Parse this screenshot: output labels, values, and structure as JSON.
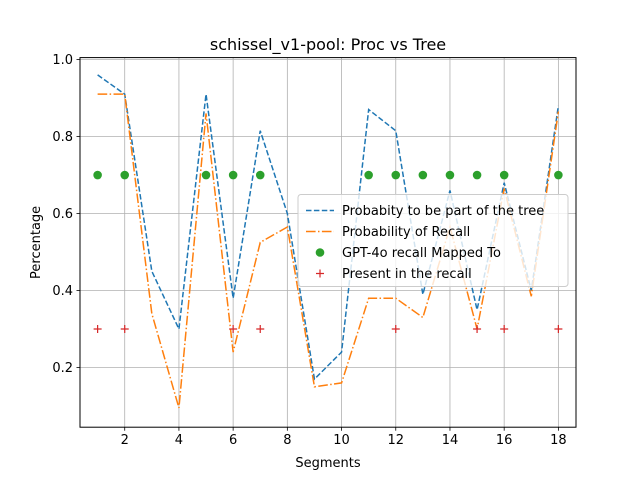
{
  "chart_data": {
    "type": "line",
    "title": "schissel_v1-pool: Proc vs Tree",
    "xlabel": "Segments",
    "ylabel": "Percentage",
    "xlim": [
      0.35,
      18.65
    ],
    "ylim": [
      0.045,
      1.005
    ],
    "xticks": [
      2,
      4,
      6,
      8,
      10,
      12,
      14,
      16,
      18
    ],
    "yticks": [
      0.2,
      0.4,
      0.6,
      0.8,
      1.0
    ],
    "grid": true,
    "legend_position": "center-right",
    "x": [
      1,
      2,
      3,
      4,
      5,
      6,
      7,
      8,
      9,
      10,
      11,
      12,
      13,
      14,
      15,
      16,
      17,
      18
    ],
    "series": [
      {
        "name": "Probabity to be part of the tree",
        "style": "dashed",
        "color": "#1f77b4",
        "values": [
          0.96,
          0.91,
          0.45,
          0.3,
          0.91,
          0.38,
          0.815,
          0.6,
          0.17,
          0.24,
          0.87,
          0.815,
          0.39,
          0.66,
          0.35,
          0.68,
          0.4,
          0.88
        ]
      },
      {
        "name": "Probability of Recall",
        "style": "dashdot",
        "color": "#ff7f0e",
        "values": [
          0.91,
          0.91,
          0.34,
          0.095,
          0.86,
          0.24,
          0.525,
          0.565,
          0.15,
          0.16,
          0.38,
          0.38,
          0.33,
          0.565,
          0.3,
          0.665,
          0.385,
          0.865
        ]
      },
      {
        "name": "GPT-4o recall Mapped To",
        "style": "marker-circle",
        "color": "#2ca02c",
        "x": [
          1,
          2,
          5,
          6,
          7,
          11,
          12,
          13,
          14,
          15,
          16,
          18
        ],
        "values": [
          0.7,
          0.7,
          0.7,
          0.7,
          0.7,
          0.7,
          0.7,
          0.7,
          0.7,
          0.7,
          0.7,
          0.7
        ]
      },
      {
        "name": "Present in the recall",
        "style": "marker-plus",
        "color": "#d62728",
        "x": [
          1,
          2,
          6,
          7,
          12,
          15,
          16,
          18
        ],
        "values": [
          0.3,
          0.3,
          0.3,
          0.3,
          0.3,
          0.3,
          0.3,
          0.3
        ]
      }
    ]
  }
}
